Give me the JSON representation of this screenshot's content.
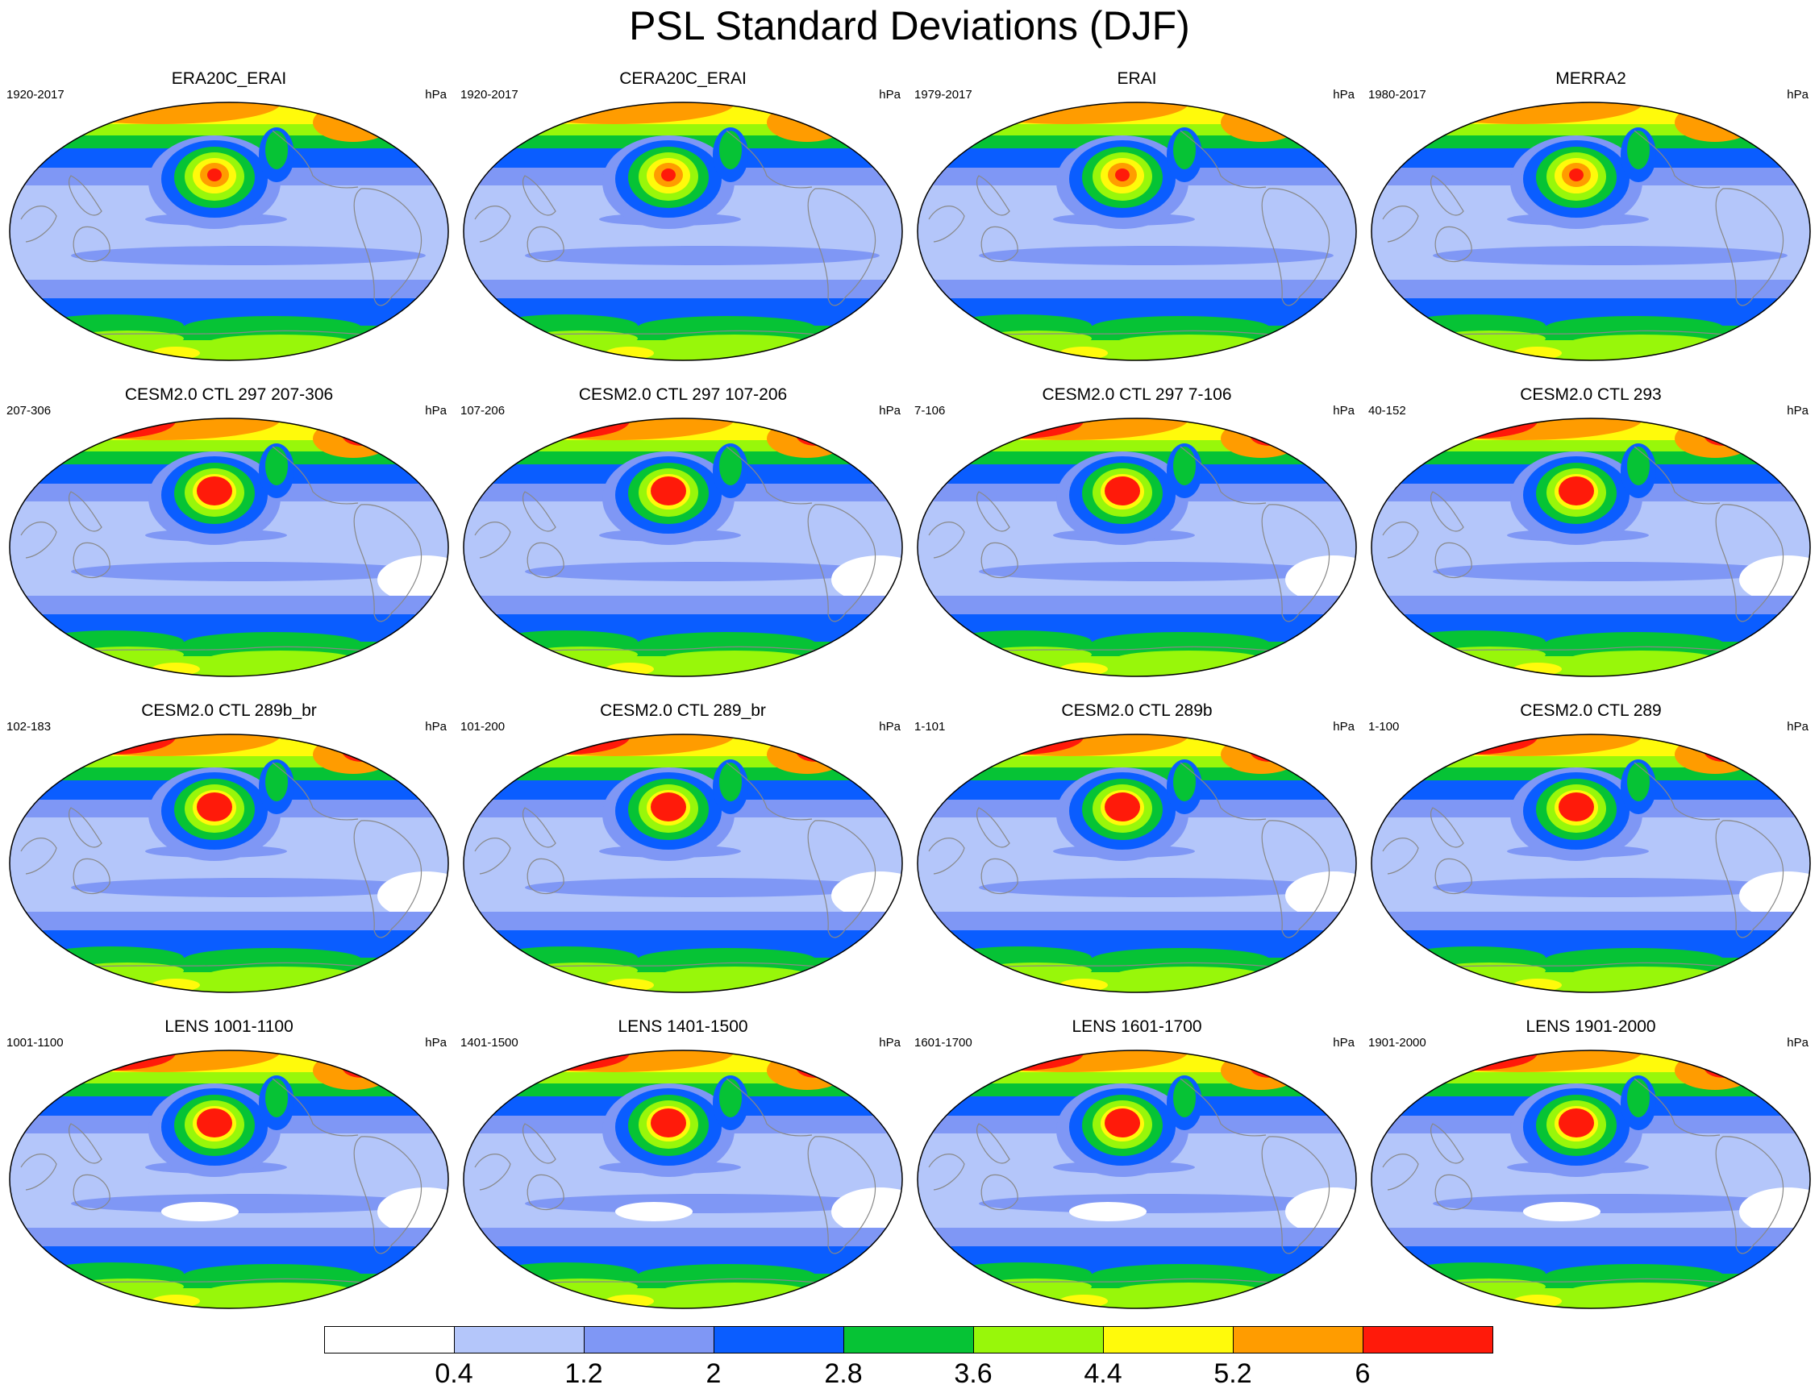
{
  "title": "PSL Standard Deviations (DJF)",
  "panels": [
    {
      "title": "ERA20C_ERAI",
      "years": "1920-2017",
      "unit": "hPa",
      "variant": 0
    },
    {
      "title": "CERA20C_ERAI",
      "years": "1920-2017",
      "unit": "hPa",
      "variant": 0
    },
    {
      "title": "ERAI",
      "years": "1979-2017",
      "unit": "hPa",
      "variant": 0
    },
    {
      "title": "MERRA2",
      "years": "1980-2017",
      "unit": "hPa",
      "variant": 0
    },
    {
      "title": "CESM2.0 CTL 297 207-306",
      "years": "207-306",
      "unit": "hPa",
      "variant": 1
    },
    {
      "title": "CESM2.0 CTL 297 107-206",
      "years": "107-206",
      "unit": "hPa",
      "variant": 1
    },
    {
      "title": "CESM2.0 CTL 297 7-106",
      "years": "7-106",
      "unit": "hPa",
      "variant": 1
    },
    {
      "title": "CESM2.0 CTL 293",
      "years": "40-152",
      "unit": "hPa",
      "variant": 1
    },
    {
      "title": "CESM2.0 CTL 289b_br",
      "years": "102-183",
      "unit": "hPa",
      "variant": 1
    },
    {
      "title": "CESM2.0 CTL 289_br",
      "years": "101-200",
      "unit": "hPa",
      "variant": 1
    },
    {
      "title": "CESM2.0 CTL 289b",
      "years": "1-101",
      "unit": "hPa",
      "variant": 1
    },
    {
      "title": "CESM2.0 CTL 289",
      "years": "1-100",
      "unit": "hPa",
      "variant": 1
    },
    {
      "title": "LENS 1001-1100",
      "years": "1001-1100",
      "unit": "hPa",
      "variant": 2
    },
    {
      "title": "LENS 1401-1500",
      "years": "1401-1500",
      "unit": "hPa",
      "variant": 2
    },
    {
      "title": "LENS 1601-1700",
      "years": "1601-1700",
      "unit": "hPa",
      "variant": 2
    },
    {
      "title": "LENS 1901-2000",
      "years": "1901-2000",
      "unit": "hPa",
      "variant": 2
    }
  ],
  "colorbar": {
    "labels": [
      "0.4",
      "1.2",
      "2",
      "2.8",
      "3.6",
      "4.4",
      "5.2",
      "6"
    ],
    "colors": [
      "#ffffff",
      "#b4c6fa",
      "#7f97f5",
      "#0a5dff",
      "#06c335",
      "#98f70a",
      "#fffa0b",
      "#ff9c00",
      "#ff1a0a"
    ]
  },
  "land_color": "#888888"
}
